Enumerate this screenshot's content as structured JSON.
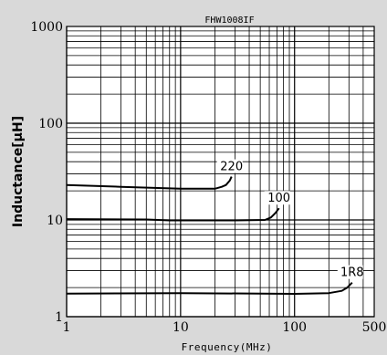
{
  "chart_data": {
    "type": "line",
    "title": "FHW1008IF",
    "xlabel": "Frequency(MHz)",
    "ylabel": "Inductance[µH]",
    "xscale": "log",
    "yscale": "log",
    "xlim": [
      1,
      500
    ],
    "ylim": [
      1,
      1000
    ],
    "x_ticks": [
      {
        "value": 1,
        "label": "1"
      },
      {
        "value": 10,
        "label": "10"
      },
      {
        "value": 100,
        "label": "100"
      },
      {
        "value": 500,
        "label": "500"
      }
    ],
    "y_ticks": [
      {
        "value": 1,
        "label": "1"
      },
      {
        "value": 10,
        "label": "10"
      },
      {
        "value": 100,
        "label": "100"
      },
      {
        "value": 1000,
        "label": "1000"
      }
    ],
    "grid": true,
    "series": [
      {
        "name": "220",
        "color": "#000000",
        "x": [
          1,
          3,
          10,
          20,
          23,
          25,
          27,
          28
        ],
        "y": [
          23,
          22,
          21,
          21,
          22,
          23,
          25.5,
          28
        ]
      },
      {
        "name": "100",
        "color": "#000000",
        "x": [
          1,
          5,
          8,
          30,
          55,
          62,
          68,
          73
        ],
        "y": [
          10.2,
          10.1,
          9.9,
          9.9,
          10,
          10.6,
          11.8,
          13.2
        ]
      },
      {
        "name": "1R8",
        "color": "#000000",
        "x": [
          1,
          10,
          100,
          200,
          260,
          290,
          320
        ],
        "y": [
          1.73,
          1.75,
          1.72,
          1.75,
          1.85,
          2.0,
          2.25
        ]
      }
    ]
  }
}
